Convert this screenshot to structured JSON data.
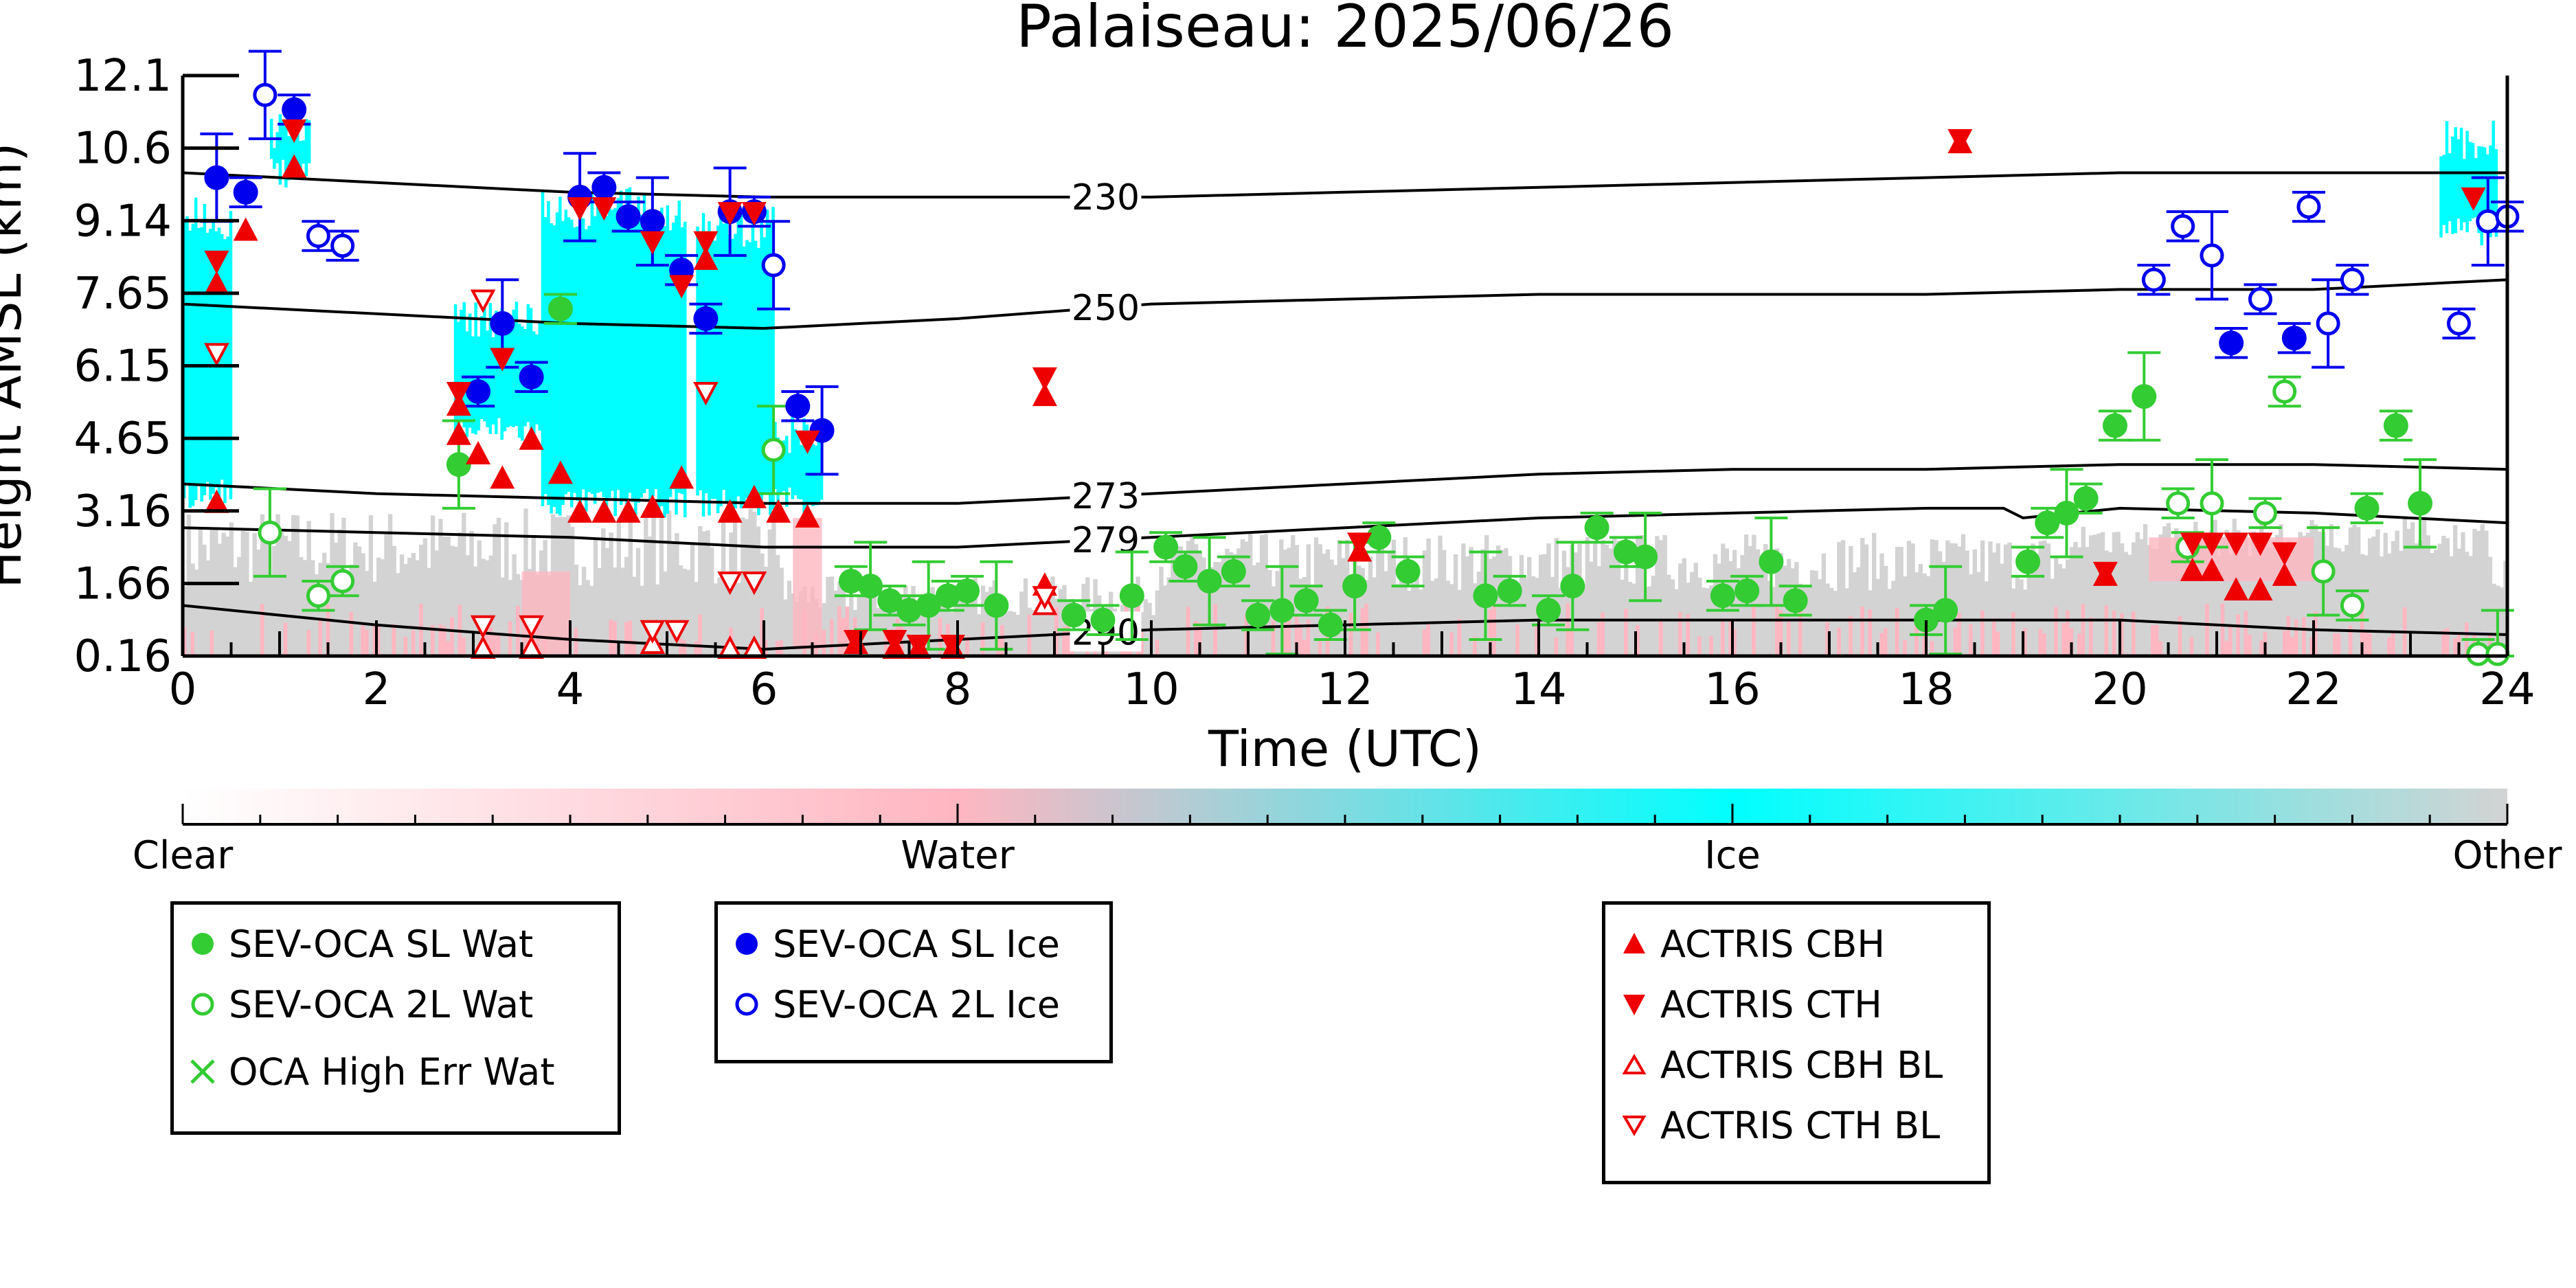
{
  "title": "Palaiseau: 2025/06/26",
  "chart_data": {
    "type": "scatter",
    "title": "Palaiseau: 2025/06/26",
    "xlabel": "Time (UTC)",
    "ylabel": "Height AMSL (km)",
    "xlim": [
      0,
      24
    ],
    "ylim": [
      0.16,
      12.1
    ],
    "xticks": [
      "0",
      "2",
      "4",
      "6",
      "8",
      "10",
      "12",
      "14",
      "16",
      "18",
      "20",
      "22",
      "24"
    ],
    "yticks": [
      "0.16",
      "1.66",
      "3.16",
      "4.65",
      "6.15",
      "7.65",
      "9.14",
      "10.6",
      "12.1"
    ],
    "grid": false,
    "background": "cloud classification curtain (Clear / Water / Ice / Other)",
    "colorbar": {
      "labels": [
        "Clear",
        "Water",
        "Ice",
        "Other"
      ],
      "colors": [
        "#ffffff",
        "#ffb6c1",
        "#00ffff",
        "#d3d3d3"
      ]
    },
    "isotherms": [
      {
        "label": "230",
        "x": [
          0,
          2,
          4,
          6,
          8,
          10,
          12,
          14,
          16,
          18,
          20,
          22,
          24
        ],
        "y": [
          10.1,
          9.9,
          9.7,
          9.6,
          9.6,
          9.6,
          9.7,
          9.8,
          9.9,
          10.0,
          10.1,
          10.1,
          10.1
        ]
      },
      {
        "label": "250",
        "x": [
          0,
          2,
          4,
          6,
          8,
          10,
          12,
          14,
          16,
          18,
          20,
          22,
          24
        ],
        "y": [
          7.4,
          7.2,
          7.0,
          6.9,
          7.1,
          7.4,
          7.5,
          7.6,
          7.6,
          7.6,
          7.7,
          7.7,
          7.9
        ]
      },
      {
        "label": "273",
        "x": [
          0,
          2,
          4,
          6,
          8,
          10,
          12,
          14,
          16,
          18,
          20,
          22,
          24
        ],
        "y": [
          3.7,
          3.5,
          3.4,
          3.3,
          3.3,
          3.5,
          3.7,
          3.9,
          4.0,
          4.0,
          4.1,
          4.1,
          4.0
        ]
      },
      {
        "label": "279",
        "x": [
          0,
          2,
          4,
          6,
          8,
          10,
          12,
          14,
          16,
          18,
          18.8,
          19.0,
          20,
          22,
          24
        ],
        "y": [
          2.8,
          2.7,
          2.6,
          2.4,
          2.4,
          2.6,
          2.8,
          3.0,
          3.1,
          3.2,
          3.2,
          3.0,
          3.2,
          3.1,
          2.9
        ]
      },
      {
        "label": "290",
        "x": [
          0,
          2,
          4,
          6,
          8,
          10,
          12,
          14,
          16,
          18,
          20,
          22,
          24
        ],
        "y": [
          1.2,
          0.8,
          0.5,
          0.3,
          0.5,
          0.7,
          0.8,
          0.9,
          0.9,
          0.9,
          0.9,
          0.7,
          0.6
        ]
      }
    ],
    "series": [
      {
        "name": "SEV-OCA SL Wat",
        "color": "#33cc33",
        "marker": "filled-circle",
        "points": [
          [
            2.85,
            4.1
          ],
          [
            3.9,
            7.3
          ],
          [
            6.9,
            1.7
          ],
          [
            7.1,
            1.6
          ],
          [
            7.3,
            1.3
          ],
          [
            7.5,
            1.1
          ],
          [
            7.7,
            1.2
          ],
          [
            7.9,
            1.4
          ],
          [
            8.1,
            1.5
          ],
          [
            8.4,
            1.2
          ],
          [
            9.2,
            1.0
          ],
          [
            9.5,
            0.9
          ],
          [
            9.8,
            1.4
          ],
          [
            10.15,
            2.4
          ],
          [
            10.35,
            2.0
          ],
          [
            10.6,
            1.7
          ],
          [
            10.85,
            1.9
          ],
          [
            11.1,
            1.0
          ],
          [
            11.35,
            1.1
          ],
          [
            11.6,
            1.3
          ],
          [
            11.85,
            0.8
          ],
          [
            12.1,
            1.6
          ],
          [
            12.35,
            2.6
          ],
          [
            12.65,
            1.9
          ],
          [
            13.45,
            1.4
          ],
          [
            13.7,
            1.5
          ],
          [
            14.1,
            1.1
          ],
          [
            14.35,
            1.6
          ],
          [
            14.6,
            2.8
          ],
          [
            14.9,
            2.3
          ],
          [
            15.1,
            2.2
          ],
          [
            15.9,
            1.4
          ],
          [
            16.15,
            1.5
          ],
          [
            16.4,
            2.1
          ],
          [
            16.65,
            1.3
          ],
          [
            18.0,
            0.9
          ],
          [
            18.2,
            1.1
          ],
          [
            19.05,
            2.1
          ],
          [
            19.25,
            2.9
          ],
          [
            19.45,
            3.1
          ],
          [
            19.65,
            3.4
          ],
          [
            19.95,
            4.9
          ],
          [
            20.25,
            5.5
          ],
          [
            22.55,
            3.2
          ],
          [
            22.85,
            4.9
          ],
          [
            23.1,
            3.3
          ]
        ]
      },
      {
        "name": "SEV-OCA 2L Wat",
        "color": "#33cc33",
        "marker": "open-circle",
        "points": [
          [
            0.9,
            2.7
          ],
          [
            1.4,
            1.4
          ],
          [
            1.65,
            1.7
          ],
          [
            6.1,
            4.4
          ],
          [
            20.6,
            3.3
          ],
          [
            20.7,
            2.4
          ],
          [
            20.95,
            3.3
          ],
          [
            21.5,
            3.1
          ],
          [
            21.7,
            5.6
          ],
          [
            22.1,
            1.9
          ],
          [
            22.4,
            1.2
          ],
          [
            23.7,
            0.2
          ],
          [
            23.9,
            0.2
          ]
        ]
      },
      {
        "name": "OCA High Err Wat",
        "color": "#33cc33",
        "marker": "x",
        "points": []
      },
      {
        "name": "SEV-OCA SL Ice",
        "color": "#0000ee",
        "marker": "filled-circle",
        "points": [
          [
            0.35,
            10.0
          ],
          [
            0.65,
            9.7
          ],
          [
            1.15,
            11.4
          ],
          [
            3.3,
            7.0
          ],
          [
            3.05,
            5.6
          ],
          [
            3.6,
            5.9
          ],
          [
            4.1,
            9.6
          ],
          [
            4.35,
            9.8
          ],
          [
            4.6,
            9.2
          ],
          [
            4.85,
            9.1
          ],
          [
            5.15,
            8.1
          ],
          [
            5.4,
            7.1
          ],
          [
            5.65,
            9.3
          ],
          [
            5.9,
            9.3
          ],
          [
            6.35,
            5.3
          ],
          [
            6.6,
            4.8
          ],
          [
            21.15,
            6.6
          ],
          [
            21.8,
            6.7
          ]
        ]
      },
      {
        "name": "SEV-OCA 2L Ice",
        "color": "#0000ee",
        "marker": "open-circle",
        "points": [
          [
            0.85,
            11.7
          ],
          [
            1.4,
            8.8
          ],
          [
            1.65,
            8.6
          ],
          [
            6.1,
            8.2
          ],
          [
            20.35,
            7.9
          ],
          [
            20.65,
            9.0
          ],
          [
            20.95,
            8.4
          ],
          [
            21.45,
            7.5
          ],
          [
            21.95,
            9.4
          ],
          [
            22.15,
            7.0
          ],
          [
            22.4,
            7.9
          ],
          [
            23.5,
            7.0
          ],
          [
            23.8,
            9.1
          ],
          [
            24.0,
            9.2
          ]
        ]
      },
      {
        "name": "ACTRIS CBH",
        "color": "#ee0000",
        "marker": "filled-triangle-up",
        "points": [
          [
            0.35,
            7.8
          ],
          [
            0.35,
            3.3
          ],
          [
            0.65,
            8.9
          ],
          [
            1.15,
            10.2
          ],
          [
            2.85,
            5.3
          ],
          [
            2.85,
            4.7
          ],
          [
            3.05,
            4.3
          ],
          [
            3.3,
            3.8
          ],
          [
            3.6,
            4.6
          ],
          [
            3.9,
            3.9
          ],
          [
            4.1,
            3.1
          ],
          [
            4.35,
            3.1
          ],
          [
            4.6,
            3.1
          ],
          [
            4.85,
            3.2
          ],
          [
            5.15,
            3.8
          ],
          [
            5.4,
            8.3
          ],
          [
            5.65,
            3.1
          ],
          [
            5.9,
            3.4
          ],
          [
            6.15,
            3.1
          ],
          [
            6.45,
            3.0
          ],
          [
            6.95,
            0.4
          ],
          [
            7.35,
            0.3
          ],
          [
            7.6,
            0.3
          ],
          [
            7.95,
            0.3
          ],
          [
            8.9,
            5.5
          ],
          [
            8.9,
            1.6
          ],
          [
            12.15,
            2.3
          ],
          [
            18.35,
            10.7
          ],
          [
            19.85,
            1.8
          ],
          [
            20.75,
            1.9
          ],
          [
            20.95,
            1.9
          ],
          [
            21.2,
            1.5
          ],
          [
            21.45,
            1.5
          ],
          [
            21.7,
            1.8
          ]
        ]
      },
      {
        "name": "ACTRIS CTH",
        "color": "#ee0000",
        "marker": "filled-triangle-down",
        "points": [
          [
            0.35,
            8.3
          ],
          [
            1.15,
            11.0
          ],
          [
            2.85,
            5.6
          ],
          [
            3.3,
            6.3
          ],
          [
            4.1,
            9.4
          ],
          [
            4.35,
            9.4
          ],
          [
            4.85,
            8.7
          ],
          [
            5.15,
            7.8
          ],
          [
            5.4,
            8.7
          ],
          [
            5.65,
            9.3
          ],
          [
            5.9,
            9.3
          ],
          [
            6.45,
            4.6
          ],
          [
            6.95,
            0.5
          ],
          [
            7.35,
            0.5
          ],
          [
            7.6,
            0.4
          ],
          [
            7.95,
            0.4
          ],
          [
            8.9,
            5.9
          ],
          [
            12.15,
            2.5
          ],
          [
            18.35,
            10.8
          ],
          [
            19.85,
            1.9
          ],
          [
            20.75,
            2.5
          ],
          [
            20.95,
            2.5
          ],
          [
            21.2,
            2.5
          ],
          [
            21.45,
            2.5
          ],
          [
            21.7,
            2.3
          ],
          [
            23.65,
            9.6
          ]
        ]
      },
      {
        "name": "ACTRIS CBH BL",
        "color": "#ee0000",
        "marker": "open-triangle-up",
        "points": [
          [
            3.1,
            0.3
          ],
          [
            3.6,
            0.3
          ],
          [
            4.85,
            0.4
          ],
          [
            5.65,
            0.3
          ],
          [
            5.9,
            0.3
          ],
          [
            8.9,
            1.2
          ]
        ]
      },
      {
        "name": "ACTRIS CTH BL",
        "color": "#ee0000",
        "marker": "open-triangle-down",
        "points": [
          [
            0.35,
            6.4
          ],
          [
            3.1,
            7.5
          ],
          [
            3.6,
            0.8
          ],
          [
            3.1,
            0.8
          ],
          [
            4.85,
            0.7
          ],
          [
            5.1,
            0.7
          ],
          [
            5.65,
            1.7
          ],
          [
            5.9,
            1.7
          ],
          [
            5.4,
            5.6
          ],
          [
            8.9,
            1.4
          ]
        ]
      }
    ]
  },
  "legends": {
    "water": [
      "SEV-OCA SL Wat",
      "SEV-OCA 2L Wat",
      "OCA High Err Wat"
    ],
    "ice": [
      "SEV-OCA SL Ice",
      "SEV-OCA 2L Ice"
    ],
    "actris": [
      "ACTRIS CBH",
      "ACTRIS CTH",
      "ACTRIS CBH BL",
      "ACTRIS CTH BL"
    ]
  }
}
